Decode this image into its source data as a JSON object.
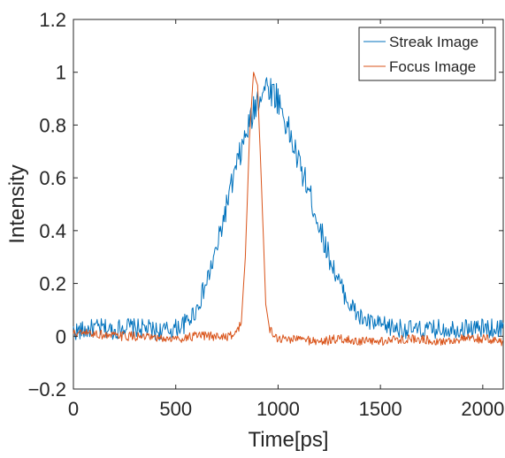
{
  "chart_data": {
    "type": "line",
    "title": "",
    "xlabel": "Time[ps]",
    "ylabel": "Intensity",
    "xlim": [
      0,
      2100
    ],
    "ylim": [
      -0.2,
      1.2
    ],
    "xticks": [
      0,
      500,
      1000,
      1500,
      2000
    ],
    "xtick_labels": [
      "0",
      "500",
      "1000",
      "1500",
      "2000"
    ],
    "yticks": [
      -0.2,
      0,
      0.2,
      0.4,
      0.6,
      0.8,
      1,
      1.2
    ],
    "ytick_labels": [
      "−0.2",
      "0",
      "0.2",
      "0.4",
      "0.6",
      "0.8",
      "1",
      "1.2"
    ],
    "grid": false,
    "legend": {
      "placement": "top-right"
    },
    "series": [
      {
        "name": "Streak Image",
        "color": "#0072BD",
        "x": [
          0,
          50,
          100,
          150,
          200,
          250,
          300,
          350,
          400,
          450,
          500,
          550,
          600,
          650,
          700,
          750,
          800,
          850,
          880,
          900,
          920,
          950,
          1000,
          1050,
          1100,
          1150,
          1200,
          1250,
          1300,
          1350,
          1400,
          1450,
          1500,
          1600,
          1700,
          1800,
          1900,
          2000,
          2100
        ],
        "y": [
          0.02,
          0.02,
          0.03,
          0.03,
          0.02,
          0.04,
          0.03,
          0.03,
          0.02,
          0.02,
          0.03,
          0.05,
          0.1,
          0.2,
          0.33,
          0.5,
          0.65,
          0.78,
          0.85,
          0.9,
          0.93,
          0.95,
          0.9,
          0.78,
          0.66,
          0.55,
          0.42,
          0.3,
          0.2,
          0.12,
          0.07,
          0.05,
          0.04,
          0.03,
          0.02,
          0.03,
          0.03,
          0.03,
          0.03
        ]
      },
      {
        "name": "Focus Image",
        "color": "#D95319",
        "x": [
          0,
          100,
          200,
          300,
          400,
          500,
          600,
          700,
          780,
          820,
          840,
          860,
          880,
          900,
          920,
          940,
          960,
          1000,
          1100,
          1200,
          1300,
          1400,
          1500,
          1600,
          1700,
          1800,
          1900,
          2000,
          2100
        ],
        "y": [
          0.01,
          0.01,
          0.0,
          0.0,
          -0.01,
          -0.01,
          0.0,
          0.0,
          0.0,
          0.05,
          0.3,
          0.75,
          1.0,
          0.95,
          0.55,
          0.12,
          0.02,
          -0.01,
          -0.01,
          -0.02,
          -0.01,
          -0.02,
          -0.02,
          -0.01,
          -0.01,
          -0.02,
          -0.01,
          -0.01,
          -0.02
        ]
      }
    ]
  }
}
